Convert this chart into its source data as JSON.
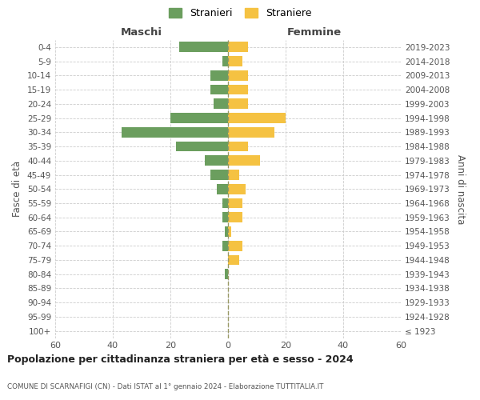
{
  "age_groups": [
    "100+",
    "95-99",
    "90-94",
    "85-89",
    "80-84",
    "75-79",
    "70-74",
    "65-69",
    "60-64",
    "55-59",
    "50-54",
    "45-49",
    "40-44",
    "35-39",
    "30-34",
    "25-29",
    "20-24",
    "15-19",
    "10-14",
    "5-9",
    "0-4"
  ],
  "birth_years": [
    "≤ 1923",
    "1924-1928",
    "1929-1933",
    "1934-1938",
    "1939-1943",
    "1944-1948",
    "1949-1953",
    "1954-1958",
    "1959-1963",
    "1964-1968",
    "1969-1973",
    "1974-1978",
    "1979-1983",
    "1984-1988",
    "1989-1993",
    "1994-1998",
    "1999-2003",
    "2004-2008",
    "2009-2013",
    "2014-2018",
    "2019-2023"
  ],
  "maschi": [
    0,
    0,
    0,
    0,
    1,
    0,
    2,
    1,
    2,
    2,
    4,
    6,
    8,
    18,
    37,
    20,
    5,
    6,
    6,
    2,
    17
  ],
  "femmine": [
    0,
    0,
    0,
    0,
    0,
    4,
    5,
    1,
    5,
    5,
    6,
    4,
    11,
    7,
    16,
    20,
    7,
    7,
    7,
    5,
    7
  ],
  "maschi_color": "#6b9e5e",
  "femmine_color": "#f5c242",
  "grid_color": "#cccccc",
  "zero_line_color": "#aaaaaa",
  "title": "Popolazione per cittadinanza straniera per età e sesso - 2024",
  "subtitle": "COMUNE DI SCARNAFIGI (CN) - Dati ISTAT al 1° gennaio 2024 - Elaborazione TUTTITALIA.IT",
  "ylabel_left": "Fasce di età",
  "ylabel_right": "Anni di nascita",
  "label_maschi": "Maschi",
  "label_femmine": "Femmine",
  "legend_maschi": "Stranieri",
  "legend_femmine": "Straniere",
  "xlim": 60
}
